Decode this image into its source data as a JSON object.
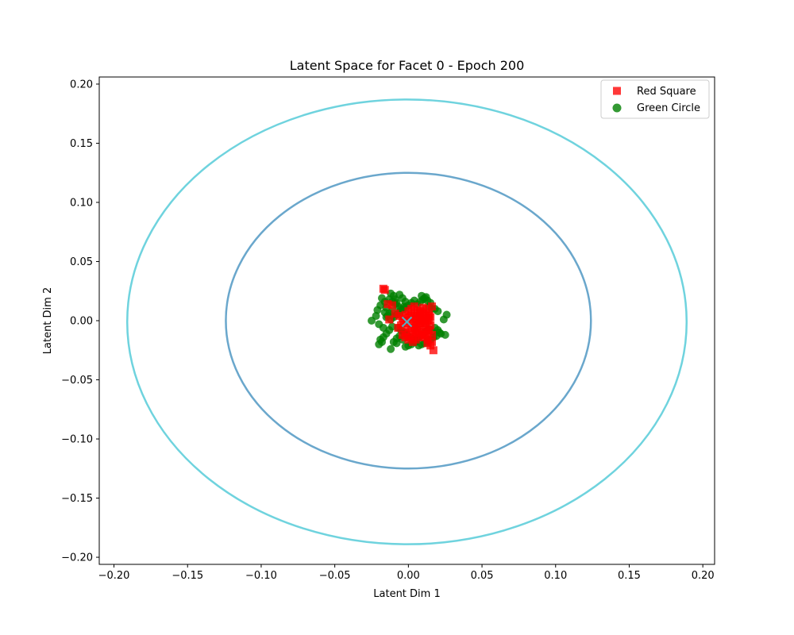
{
  "chart_data": {
    "type": "scatter",
    "title": "Latent Space for Facet 0 - Epoch 200",
    "xlabel": "Latent Dim 1",
    "ylabel": "Latent Dim 2",
    "xlim": [
      -0.21,
      0.208
    ],
    "ylim": [
      -0.206,
      0.206
    ],
    "xticks": [
      "−0.20",
      "−0.15",
      "−0.10",
      "−0.05",
      "0.00",
      "0.05",
      "0.10",
      "0.15",
      "0.20"
    ],
    "yticks": [
      "−0.20",
      "−0.15",
      "−0.10",
      "−0.05",
      "0.00",
      "0.05",
      "0.10",
      "0.15",
      "0.20"
    ],
    "xtick_values": [
      -0.2,
      -0.15,
      -0.1,
      -0.05,
      0,
      0.05,
      0.1,
      0.15,
      0.2
    ],
    "ytick_values": [
      -0.2,
      -0.15,
      -0.1,
      -0.05,
      0,
      0.05,
      0.1,
      0.15,
      0.2
    ],
    "grid": false,
    "legend_position": "top-right",
    "series": [
      {
        "name": "Red Square",
        "marker": "square",
        "color": "#ff0000",
        "x": [
          -0.017,
          -0.016,
          -0.014,
          -0.011,
          -0.013,
          -0.009,
          -0.006,
          -0.004,
          -0.002,
          0.0,
          0.002,
          0.004,
          0.006,
          0.008,
          0.01,
          0.012,
          0.014,
          0.016,
          0.015,
          0.013,
          0.011,
          0.009,
          0.007,
          0.005,
          0.003,
          0.001,
          -0.001,
          -0.003,
          -0.005,
          -0.007,
          0.0,
          0.002,
          0.004,
          0.006,
          0.008,
          0.01,
          0.012,
          0.014,
          0.013,
          0.011,
          0.009,
          0.007,
          0.005,
          0.003,
          0.001,
          -0.002,
          -0.004,
          0.002,
          0.004,
          0.006,
          0.008,
          0.01,
          0.012,
          0.014,
          0.015,
          0.016,
          0.013,
          0.011,
          0.009,
          0.007,
          0.005,
          0.003,
          0.0,
          -0.002,
          0.004,
          0.006,
          0.008,
          0.01,
          0.012,
          0.014,
          0.013,
          0.015,
          0.016,
          0.017
        ],
        "y": [
          0.027,
          0.026,
          0.014,
          0.013,
          0.001,
          0.006,
          0.004,
          0.002,
          0.005,
          0.008,
          0.01,
          0.012,
          0.009,
          0.007,
          0.011,
          0.01,
          0.006,
          0.012,
          0.003,
          0.0,
          -0.002,
          0.0,
          0.002,
          -0.003,
          0.001,
          0.003,
          -0.002,
          0.0,
          -0.004,
          -0.006,
          -0.006,
          -0.008,
          -0.006,
          -0.004,
          -0.002,
          -0.004,
          -0.006,
          -0.008,
          -0.01,
          -0.012,
          -0.01,
          -0.008,
          -0.01,
          -0.012,
          -0.014,
          -0.01,
          -0.012,
          0.004,
          0.006,
          0.004,
          0.002,
          0.004,
          0.002,
          0.0,
          -0.004,
          -0.012,
          -0.016,
          -0.014,
          -0.012,
          -0.014,
          -0.016,
          -0.018,
          -0.016,
          -0.014,
          -0.002,
          -0.01,
          0.008,
          0.007,
          0.005,
          0.004,
          -0.019,
          -0.021,
          -0.018,
          -0.025
        ]
      },
      {
        "name": "Green Circle",
        "marker": "circle",
        "color": "#008000",
        "x": [
          -0.025,
          -0.022,
          -0.021,
          -0.019,
          -0.018,
          -0.016,
          -0.02,
          -0.017,
          -0.015,
          -0.013,
          -0.011,
          -0.012,
          -0.01,
          -0.009,
          -0.008,
          -0.006,
          -0.004,
          -0.002,
          -0.003,
          -0.005,
          -0.007,
          -0.009,
          -0.011,
          -0.013,
          -0.015,
          -0.016,
          -0.014,
          -0.012,
          -0.01,
          -0.008,
          -0.006,
          -0.004,
          -0.002,
          0.0,
          0.002,
          0.004,
          -0.011,
          -0.013,
          -0.015,
          -0.017,
          -0.019,
          -0.02,
          -0.018,
          -0.012,
          -0.008,
          -0.004,
          0.0,
          0.004,
          0.006,
          0.008,
          0.01,
          0.012,
          0.014,
          0.016,
          0.018,
          0.02,
          0.022,
          0.024,
          0.026,
          0.025,
          0.021,
          0.019,
          0.017,
          0.015,
          0.013,
          0.011,
          0.009,
          0.007,
          0.005,
          0.003,
          0.001,
          -0.001,
          -0.003,
          -0.005,
          -0.007,
          0.009,
          0.011,
          0.013,
          0.015,
          0.012,
          0.01,
          0.008,
          0.006,
          0.018,
          0.02,
          0.014,
          0.016,
          -0.006,
          -0.008,
          -0.01,
          -0.002,
          0.002
        ],
        "y": [
          0.0,
          0.004,
          0.009,
          0.013,
          0.019,
          0.016,
          -0.003,
          -0.006,
          0.003,
          0.006,
          0.008,
          0.023,
          0.021,
          0.018,
          0.015,
          0.022,
          0.019,
          0.016,
          0.012,
          0.01,
          0.012,
          0.014,
          0.016,
          0.018,
          0.011,
          0.007,
          0.004,
          0.001,
          0.003,
          0.005,
          0.007,
          0.009,
          0.011,
          0.013,
          0.015,
          0.017,
          -0.005,
          -0.008,
          -0.011,
          -0.014,
          -0.016,
          -0.02,
          -0.018,
          -0.024,
          -0.019,
          -0.016,
          -0.021,
          -0.018,
          -0.015,
          -0.013,
          -0.011,
          -0.009,
          -0.007,
          -0.009,
          -0.006,
          -0.008,
          -0.011,
          0.001,
          0.005,
          -0.012,
          -0.01,
          -0.013,
          -0.014,
          -0.016,
          -0.017,
          -0.019,
          -0.02,
          -0.021,
          -0.018,
          -0.016,
          -0.014,
          -0.012,
          -0.01,
          -0.008,
          -0.006,
          0.021,
          0.019,
          0.017,
          0.015,
          0.02,
          0.018,
          0.016,
          0.014,
          0.01,
          0.008,
          0.012,
          0.01,
          -0.013,
          -0.015,
          -0.018,
          -0.022,
          -0.02
        ]
      }
    ],
    "ellipses": [
      {
        "cx": 0.0,
        "cy": 0.0,
        "rx": 0.124,
        "ry": 0.125,
        "color": "#6aa7cc"
      },
      {
        "cx": -0.001,
        "cy": -0.001,
        "rx": 0.19,
        "ry": 0.188,
        "color": "#6fd3de"
      }
    ],
    "center_marker": {
      "x": -0.001,
      "y": -0.001,
      "color": "#4fb3c8",
      "symbol": "x"
    }
  }
}
